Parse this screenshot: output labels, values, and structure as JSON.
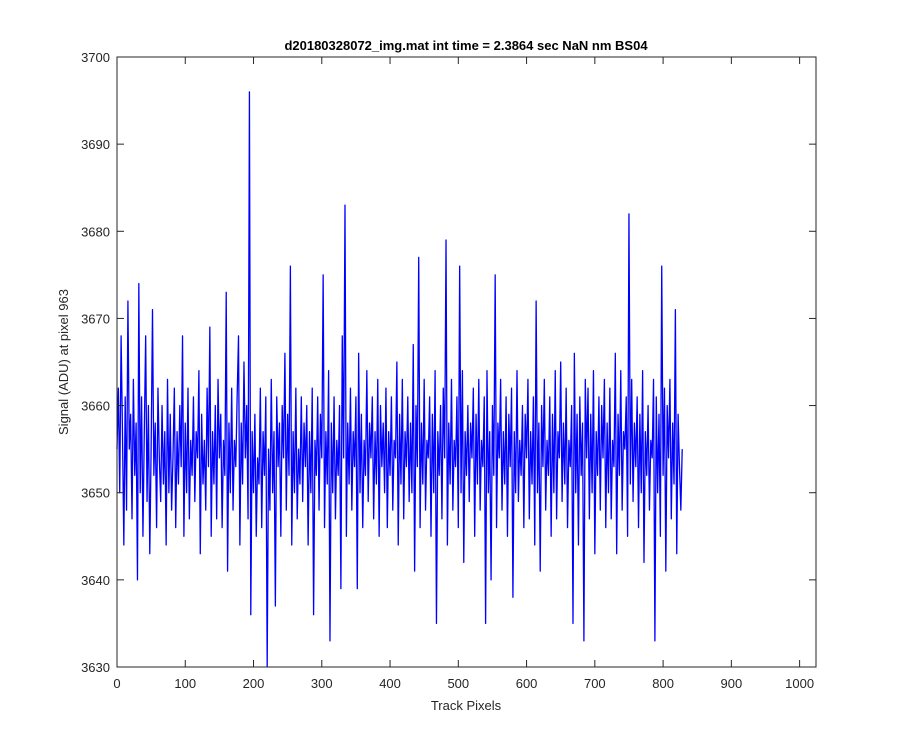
{
  "chart_data": {
    "type": "line",
    "title": "d20180328072_img.mat int time = 2.3864 sec  NaN nm BS04",
    "xlabel": "Track Pixels",
    "ylabel": "Signal (ADU) at pixel 963",
    "xlim": [
      0,
      1024
    ],
    "ylim": [
      3630,
      3700
    ],
    "xticks": [
      0,
      100,
      200,
      300,
      400,
      500,
      600,
      700,
      800,
      900,
      1000
    ],
    "yticks": [
      3630,
      3640,
      3650,
      3660,
      3670,
      3680,
      3690,
      3700
    ],
    "grid": false,
    "line_color": "#0000ff",
    "series": [
      {
        "approximate": true,
        "x_start": 0,
        "x_step": 2,
        "values": [
          3655,
          3662,
          3650,
          3668,
          3657,
          3644,
          3661,
          3648,
          3672,
          3655,
          3659,
          3647,
          3663,
          3652,
          3658,
          3640,
          3674,
          3650,
          3661,
          3645,
          3657,
          3668,
          3649,
          3660,
          3643,
          3655,
          3671,
          3652,
          3658,
          3646,
          3662,
          3654,
          3649,
          3660,
          3651,
          3657,
          3644,
          3663,
          3650,
          3659,
          3648,
          3654,
          3662,
          3646,
          3657,
          3651,
          3660,
          3653,
          3668,
          3645,
          3658,
          3650,
          3662,
          3647,
          3656,
          3652,
          3661,
          3649,
          3657,
          3654,
          3664,
          3643,
          3659,
          3651,
          3656,
          3648,
          3662,
          3653,
          3669,
          3645,
          3657,
          3651,
          3660,
          3647,
          3663,
          3654,
          3659,
          3646,
          3656,
          3652,
          3673,
          3641,
          3658,
          3650,
          3662,
          3648,
          3656,
          3653,
          3661,
          3668,
          3644,
          3658,
          3651,
          3665,
          3654,
          3660,
          3647,
          3696,
          3636,
          3657,
          3650,
          3659,
          3645,
          3654,
          3651,
          3662,
          3646,
          3657,
          3652,
          3661,
          3630,
          3655,
          3648,
          3663,
          3650,
          3657,
          3637,
          3661,
          3653,
          3658,
          3645,
          3660,
          3654,
          3666,
          3648,
          3659,
          3652,
          3676,
          3644,
          3657,
          3650,
          3662,
          3647,
          3655,
          3651,
          3661,
          3649,
          3658,
          3653,
          3660,
          3644,
          3657,
          3650,
          3662,
          3636,
          3656,
          3652,
          3661,
          3648,
          3659,
          3654,
          3675,
          3646,
          3657,
          3651,
          3664,
          3633,
          3658,
          3650,
          3661,
          3647,
          3656,
          3652,
          3660,
          3639,
          3668,
          3654,
          3683,
          3645,
          3658,
          3651,
          3662,
          3648,
          3657,
          3653,
          3661,
          3639,
          3666,
          3650,
          3659,
          3646,
          3656,
          3652,
          3664,
          3649,
          3658,
          3654,
          3661,
          3647,
          3657,
          3651,
          3663,
          3645,
          3660,
          3653,
          3658,
          3650,
          3662,
          3646,
          3657,
          3652,
          3661,
          3648,
          3656,
          3654,
          3665,
          3644,
          3659,
          3651,
          3663,
          3647,
          3657,
          3653,
          3661,
          3649,
          3658,
          3650,
          3667,
          3641,
          3660,
          3653,
          3677,
          3646,
          3658,
          3651,
          3663,
          3648,
          3656,
          3654,
          3661,
          3645,
          3659,
          3650,
          3664,
          3635,
          3657,
          3652,
          3660,
          3647,
          3662,
          3654,
          3679,
          3644,
          3658,
          3651,
          3663,
          3648,
          3656,
          3653,
          3661,
          3646,
          3676,
          3650,
          3664,
          3642,
          3657,
          3652,
          3660,
          3649,
          3658,
          3654,
          3662,
          3645,
          3659,
          3651,
          3663,
          3648,
          3656,
          3653,
          3661,
          3635,
          3664,
          3650,
          3657,
          3640,
          3660,
          3652,
          3675,
          3646,
          3658,
          3654,
          3663,
          3648,
          3657,
          3651,
          3661,
          3645,
          3659,
          3653,
          3662,
          3638,
          3657,
          3650,
          3664,
          3649,
          3656,
          3652,
          3660,
          3646,
          3659,
          3654,
          3663,
          3647,
          3657,
          3651,
          3661,
          3644,
          3672,
          3650,
          3658,
          3641,
          3660,
          3653,
          3663,
          3648,
          3656,
          3652,
          3661,
          3645,
          3659,
          3650,
          3664,
          3647,
          3657,
          3654,
          3665,
          3649,
          3658,
          3651,
          3662,
          3646,
          3656,
          3653,
          3660,
          3635,
          3666,
          3650,
          3659,
          3644,
          3661,
          3652,
          3658,
          3633,
          3663,
          3654,
          3662,
          3647,
          3659,
          3650,
          3664,
          3643,
          3657,
          3652,
          3661,
          3648,
          3660,
          3654,
          3663,
          3646,
          3658,
          3650,
          3662,
          3647,
          3656,
          3653,
          3666,
          3643,
          3659,
          3652,
          3664,
          3648,
          3657,
          3655,
          3661,
          3645,
          3682,
          3651,
          3663,
          3649,
          3658,
          3653,
          3661,
          3646,
          3659,
          3650,
          3664,
          3642,
          3657,
          3652,
          3660,
          3648,
          3656,
          3654,
          3663,
          3633,
          3661,
          3650,
          3659,
          3645,
          3676,
          3652,
          3662,
          3641,
          3660,
          3654,
          3663,
          3647,
          3658,
          3651,
          3671,
          3643,
          3659,
          3653,
          3648,
          3655
        ]
      }
    ]
  }
}
